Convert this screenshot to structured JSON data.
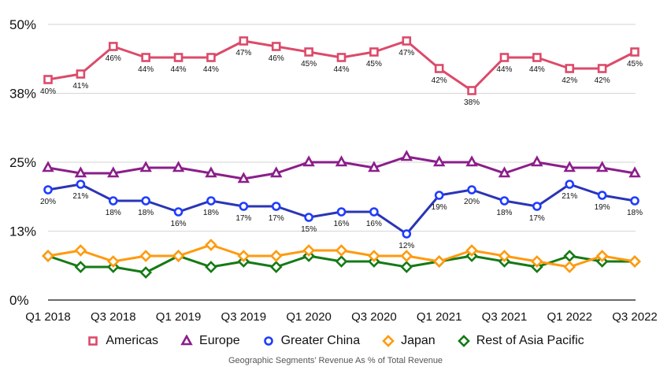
{
  "chart_data": {
    "type": "line",
    "title": "",
    "caption": "Geographic Segments’ Revenue As % of Total Revenue",
    "xlabel": "",
    "ylabel": "",
    "ylim": [
      0,
      50
    ],
    "yticks": [
      0,
      12.5,
      25,
      37.5,
      50
    ],
    "ytick_labels": [
      "0%",
      "13%",
      "25%",
      "38%",
      "50%"
    ],
    "grid": true,
    "legend_position": "bottom",
    "x": [
      "Q1 2018",
      "Q2 2018",
      "Q3 2018",
      "Q4 2018",
      "Q1 2019",
      "Q2 2019",
      "Q3 2019",
      "Q4 2019",
      "Q1 2020",
      "Q2 2020",
      "Q3 2020",
      "Q4 2020",
      "Q1 2021",
      "Q2 2021",
      "Q3 2021",
      "Q4 2021",
      "Q1 2022",
      "Q2 2022",
      "Q3 2022"
    ],
    "xtick_labels": [
      "Q1 2018",
      "Q3 2018",
      "Q1 2019",
      "Q3 2019",
      "Q1 2020",
      "Q3 2020",
      "Q1 2021",
      "Q3 2021",
      "Q1 2022",
      "Q3 2022"
    ],
    "series": [
      {
        "name": "Americas",
        "color": "#dc4a6a",
        "marker": "square",
        "show_labels": true,
        "values": [
          40,
          41,
          46,
          44,
          44,
          44,
          47,
          46,
          45,
          44,
          45,
          47,
          42,
          38,
          44,
          44,
          42,
          42,
          45
        ]
      },
      {
        "name": "Europe",
        "color": "#8b1e8b",
        "marker": "triangle",
        "show_labels": false,
        "values": [
          24,
          23,
          23,
          24,
          24,
          23,
          22,
          23,
          25,
          25,
          24,
          26,
          25,
          25,
          23,
          25,
          24,
          24,
          23
        ]
      },
      {
        "name": "Greater China",
        "color": "#2a35b5",
        "marker_color": "#1f3cff",
        "marker": "circle",
        "show_labels": true,
        "values": [
          20,
          21,
          18,
          18,
          16,
          18,
          17,
          17,
          15,
          16,
          16,
          12,
          19,
          20,
          18,
          17,
          21,
          19,
          18
        ]
      },
      {
        "name": "Japan",
        "color": "#ff9a0e",
        "marker": "diamond",
        "show_labels": false,
        "values": [
          8,
          9,
          7,
          8,
          8,
          10,
          8,
          8,
          9,
          9,
          8,
          8,
          7,
          9,
          8,
          7,
          6,
          8,
          7
        ]
      },
      {
        "name": "Rest of Asia Pacific",
        "color": "#157a15",
        "marker": "diamond",
        "show_labels": false,
        "values": [
          8,
          6,
          6,
          5,
          8,
          6,
          7,
          6,
          8,
          7,
          7,
          6,
          7,
          8,
          7,
          6,
          8,
          7,
          7
        ]
      }
    ]
  }
}
